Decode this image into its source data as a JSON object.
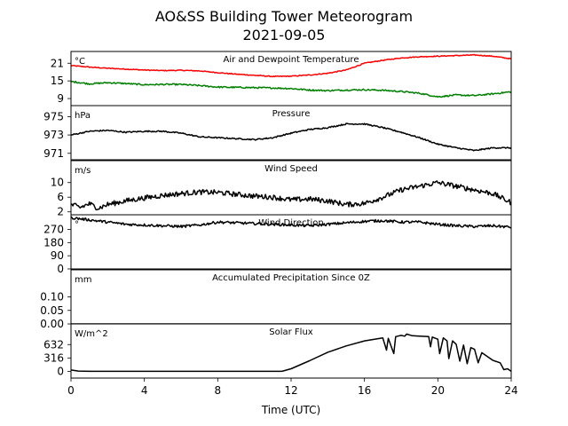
{
  "title": "AO&SS Building Tower Meteorogram",
  "subtitle": "2021-09-05",
  "xlabel": "Time (UTC)",
  "chart_data": {
    "type": "line",
    "x_range": [
      0,
      24
    ],
    "x_ticks": [
      0,
      4,
      8,
      12,
      16,
      20,
      24
    ],
    "x_tick_labels": [
      "0",
      "4",
      "8",
      "12",
      "16",
      "20",
      "24"
    ],
    "panels": [
      {
        "title": "Air and Dewpoint Temperature",
        "unit": "°C",
        "ylim": [
          6.6,
          25
        ],
        "y_ticks": [
          9,
          15,
          21
        ],
        "y_tick_labels": [
          "9",
          "15",
          "21"
        ],
        "series": [
          {
            "color": "#ff0000",
            "noise": 0.15,
            "points": [
              [
                0,
                20.2
              ],
              [
                1,
                19.7
              ],
              [
                2,
                19.3
              ],
              [
                3,
                19.0
              ],
              [
                4,
                18.7
              ],
              [
                5,
                18.5
              ],
              [
                6,
                18.6
              ],
              [
                7,
                18.4
              ],
              [
                8,
                17.8
              ],
              [
                9,
                17.3
              ],
              [
                10,
                16.9
              ],
              [
                11,
                16.5
              ],
              [
                12,
                16.6
              ],
              [
                13,
                17.0
              ],
              [
                14,
                17.6
              ],
              [
                15,
                18.7
              ],
              [
                16,
                21.0
              ],
              [
                17,
                22.0
              ],
              [
                18,
                22.8
              ],
              [
                19,
                23.2
              ],
              [
                20,
                23.4
              ],
              [
                21,
                23.6
              ],
              [
                22,
                23.8
              ],
              [
                23,
                23.4
              ],
              [
                24,
                22.5
              ]
            ]
          },
          {
            "color": "#008000",
            "noise": 0.25,
            "points": [
              [
                0,
                14.8
              ],
              [
                1,
                14.0
              ],
              [
                2,
                14.4
              ],
              [
                3,
                14.1
              ],
              [
                4,
                13.7
              ],
              [
                5,
                13.8
              ],
              [
                6,
                13.8
              ],
              [
                7,
                13.4
              ],
              [
                8,
                12.9
              ],
              [
                9,
                12.8
              ],
              [
                10,
                12.7
              ],
              [
                11,
                12.6
              ],
              [
                12,
                12.4
              ],
              [
                13,
                11.9
              ],
              [
                14,
                11.7
              ],
              [
                15,
                11.9
              ],
              [
                16,
                12.0
              ],
              [
                17,
                11.8
              ],
              [
                18,
                11.4
              ],
              [
                19,
                10.8
              ],
              [
                20,
                9.6
              ],
              [
                21,
                10.2
              ],
              [
                22,
                10.0
              ],
              [
                23,
                10.6
              ],
              [
                24,
                11.3
              ]
            ]
          }
        ]
      },
      {
        "title": "Pressure",
        "unit": "hPa",
        "ylim": [
          970.3,
          976.2
        ],
        "y_ticks": [
          971,
          973,
          975
        ],
        "y_tick_labels": [
          "971",
          "973",
          "975"
        ],
        "series": [
          {
            "color": "#000000",
            "noise": 0.07,
            "points": [
              [
                0,
                973.0
              ],
              [
                1,
                973.4
              ],
              [
                2,
                973.5
              ],
              [
                3,
                973.3
              ],
              [
                4,
                973.4
              ],
              [
                5,
                973.4
              ],
              [
                6,
                973.2
              ],
              [
                7,
                972.8
              ],
              [
                8,
                972.7
              ],
              [
                9,
                972.6
              ],
              [
                10,
                972.5
              ],
              [
                11,
                972.7
              ],
              [
                12,
                973.2
              ],
              [
                13,
                973.6
              ],
              [
                14,
                973.8
              ],
              [
                15,
                974.2
              ],
              [
                16,
                974.2
              ],
              [
                17,
                973.8
              ],
              [
                18,
                973.3
              ],
              [
                19,
                972.7
              ],
              [
                20,
                972.0
              ],
              [
                21,
                971.6
              ],
              [
                22,
                971.3
              ],
              [
                23,
                971.6
              ],
              [
                24,
                971.6
              ]
            ]
          }
        ]
      },
      {
        "title": "Wind Speed",
        "unit": "m/s",
        "ylim": [
          1.2,
          16
        ],
        "y_ticks": [
          2,
          6,
          10
        ],
        "y_tick_labels": [
          "2",
          "6",
          "10"
        ],
        "series": [
          {
            "color": "#000000",
            "noise": 0.7,
            "points": [
              [
                0,
                4.0
              ],
              [
                0.5,
                3.2
              ],
              [
                1,
                4.2
              ],
              [
                1.5,
                3.0
              ],
              [
                2,
                4.0
              ],
              [
                3,
                5.0
              ],
              [
                4,
                5.8
              ],
              [
                5,
                6.5
              ],
              [
                6,
                7.0
              ],
              [
                7,
                7.4
              ],
              [
                8,
                7.3
              ],
              [
                9,
                6.8
              ],
              [
                10,
                6.3
              ],
              [
                11,
                6.0
              ],
              [
                12,
                5.3
              ],
              [
                13,
                5.5
              ],
              [
                14,
                5.0
              ],
              [
                15,
                4.0
              ],
              [
                16,
                4.3
              ],
              [
                17,
                6.0
              ],
              [
                18,
                8.0
              ],
              [
                19,
                9.0
              ],
              [
                20,
                10.0
              ],
              [
                21,
                9.0
              ],
              [
                22,
                8.0
              ],
              [
                23,
                7.0
              ],
              [
                24,
                4.5
              ]
            ]
          }
        ]
      },
      {
        "title": "Wind Direction",
        "unit": "°",
        "ylim": [
          0,
          370
        ],
        "y_ticks": [
          0,
          90,
          180,
          270
        ],
        "y_tick_labels": [
          "0",
          "90",
          "180",
          "270"
        ],
        "series": [
          {
            "color": "#000000",
            "noise": 9,
            "points": [
              [
                0,
                350
              ],
              [
                1,
                335
              ],
              [
                2,
                320
              ],
              [
                3,
                305
              ],
              [
                4,
                300
              ],
              [
                5,
                295
              ],
              [
                6,
                290
              ],
              [
                7,
                300
              ],
              [
                8,
                320
              ],
              [
                9,
                315
              ],
              [
                10,
                310
              ],
              [
                11,
                305
              ],
              [
                12,
                300
              ],
              [
                13,
                295
              ],
              [
                14,
                305
              ],
              [
                15,
                315
              ],
              [
                16,
                325
              ],
              [
                17,
                330
              ],
              [
                18,
                320
              ],
              [
                19,
                320
              ],
              [
                20,
                305
              ],
              [
                21,
                295
              ],
              [
                22,
                290
              ],
              [
                23,
                295
              ],
              [
                24,
                285
              ]
            ]
          }
        ]
      },
      {
        "title": "Accumulated Precipitation Since 0Z",
        "unit": "mm",
        "ylim": [
          0,
          0.2
        ],
        "y_ticks": [
          0,
          0.05,
          0.1
        ],
        "y_tick_labels": [
          "0.00",
          "0.05",
          "0.10"
        ],
        "series": [
          {
            "color": "#000000",
            "noise": 0,
            "points": [
              [
                0,
                0
              ],
              [
                24,
                0
              ]
            ]
          }
        ]
      },
      {
        "title": "Solar Flux",
        "unit": "W/m^2",
        "ylim": [
          -160,
          1120
        ],
        "y_ticks": [
          0,
          316,
          632
        ],
        "y_tick_labels": [
          "0",
          "316",
          "632"
        ],
        "series": [
          {
            "color": "#000000",
            "noise": 0,
            "points": [
              [
                0,
                30
              ],
              [
                0.4,
                5
              ],
              [
                1,
                0
              ],
              [
                11.5,
                0
              ],
              [
                12,
                60
              ],
              [
                13,
                250
              ],
              [
                14,
                450
              ],
              [
                15,
                600
              ],
              [
                16,
                720
              ],
              [
                17,
                790
              ],
              [
                17.2,
                500
              ],
              [
                17.3,
                780
              ],
              [
                17.6,
                420
              ],
              [
                17.7,
                820
              ],
              [
                18,
                850
              ],
              [
                18.2,
                830
              ],
              [
                18.3,
                880
              ],
              [
                18.6,
                840
              ],
              [
                19,
                830
              ],
              [
                19.5,
                820
              ],
              [
                19.6,
                580
              ],
              [
                19.7,
                810
              ],
              [
                20,
                760
              ],
              [
                20.1,
                420
              ],
              [
                20.3,
                790
              ],
              [
                20.5,
                720
              ],
              [
                20.6,
                300
              ],
              [
                20.8,
                720
              ],
              [
                21,
                640
              ],
              [
                21.2,
                240
              ],
              [
                21.4,
                620
              ],
              [
                21.6,
                180
              ],
              [
                21.8,
                560
              ],
              [
                22,
                520
              ],
              [
                22.2,
                200
              ],
              [
                22.4,
                440
              ],
              [
                23,
                260
              ],
              [
                23.4,
                200
              ],
              [
                23.6,
                40
              ],
              [
                23.8,
                60
              ],
              [
                24,
                0
              ]
            ]
          }
        ]
      }
    ]
  }
}
